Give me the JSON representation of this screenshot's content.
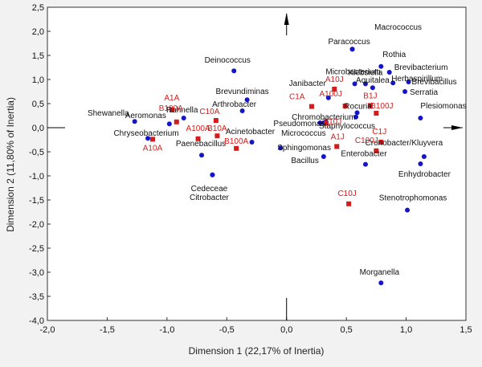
{
  "chart_data": {
    "type": "scatter",
    "title": "",
    "xlabel": "Dimension 1 (22,17% of Inertia)",
    "ylabel": "Dimension 2 (11,80% of Inertia)",
    "xlim": [
      -2.0,
      1.5
    ],
    "ylim": [
      -4.0,
      2.5
    ],
    "xticks": [
      -2.0,
      -1.5,
      -1.0,
      -0.5,
      0.0,
      0.5,
      1.0,
      1.5
    ],
    "yticks": [
      -4.0,
      -3.5,
      -3.0,
      -2.5,
      -2.0,
      -1.5,
      -1.0,
      -0.5,
      0.0,
      0.5,
      1.0,
      1.5,
      2.0,
      2.5
    ],
    "decimal_separator": ",",
    "grid": false,
    "colors": {
      "bacteria": "#1515c8",
      "samples": "#d41c1c",
      "text": "#111111",
      "background": "#f2f2f2"
    },
    "series": [
      {
        "name": "bacteria",
        "marker": "circle",
        "points": [
          {
            "label": "Macrococcus",
            "x": 0.55,
            "y": 1.63
          },
          {
            "label": "Paracoccus",
            "x": 0.55,
            "y": 1.63
          },
          {
            "label": "Rothia",
            "x": 0.79,
            "y": 1.27
          },
          {
            "label": "Brevibacterium",
            "x": 0.86,
            "y": 1.15
          },
          {
            "label": "Microbacterium",
            "x": 0.57,
            "y": 0.91
          },
          {
            "label": "Klebsiella",
            "x": 0.66,
            "y": 0.91
          },
          {
            "label": "Herbaspirillum",
            "x": 0.89,
            "y": 0.93
          },
          {
            "label": "Brevibacillus",
            "x": 1.02,
            "y": 0.95
          },
          {
            "label": "Aquitalea",
            "x": 0.72,
            "y": 0.83
          },
          {
            "label": "Serratia",
            "x": 0.99,
            "y": 0.75
          },
          {
            "label": "Deinococcus",
            "x": -0.44,
            "y": 1.18
          },
          {
            "label": "Brevundiminas",
            "x": -0.33,
            "y": 0.58
          },
          {
            "label": "Arthrobacter",
            "x": -0.37,
            "y": 0.35
          },
          {
            "label": "Janibacter",
            "x": 0.35,
            "y": 0.62
          },
          {
            "label": "Rocuria",
            "x": 0.59,
            "y": 0.31
          },
          {
            "label": "Chromobacterium",
            "x": 0.33,
            "y": 0.12
          },
          {
            "label": "Pseudomonas",
            "x": 0.28,
            "y": 0.1
          },
          {
            "label": "Staphylococcus",
            "x": 0.58,
            "y": 0.22
          },
          {
            "label": "Plesiomonas",
            "x": 1.12,
            "y": 0.2
          },
          {
            "label": "Micrococcus",
            "x": 0.31,
            "y": 0.1
          },
          {
            "label": "Shewanella",
            "x": -1.27,
            "y": 0.13
          },
          {
            "label": "Aeromonas",
            "x": -0.98,
            "y": 0.08
          },
          {
            "label": "Rahnella",
            "x": -0.86,
            "y": 0.2
          },
          {
            "label": "Chryseobacterium",
            "x": -1.16,
            "y": -0.22
          },
          {
            "label": "Acinetobacter",
            "x": -0.29,
            "y": -0.3
          },
          {
            "label": "Sphingomonas",
            "x": -0.05,
            "y": -0.42
          },
          {
            "label": "Paenebacillus",
            "x": -0.71,
            "y": -0.57
          },
          {
            "label": "Bacillus",
            "x": 0.31,
            "y": -0.6
          },
          {
            "label": "Enterobacter",
            "x": 0.66,
            "y": -0.76
          },
          {
            "label": "Cronobacter/Kluyvera",
            "x": 1.15,
            "y": -0.6
          },
          {
            "label": "Enhydrobacter",
            "x": 1.12,
            "y": -0.75
          },
          {
            "label": "Cedeceae",
            "x": -0.62,
            "y": -0.98
          },
          {
            "label": "Citrobacter",
            "x": -0.62,
            "y": -0.98
          },
          {
            "label": "Stenotrophomonas",
            "x": 1.01,
            "y": -1.71
          },
          {
            "label": "Morganella",
            "x": 0.79,
            "y": -3.22
          }
        ]
      },
      {
        "name": "samples",
        "marker": "square",
        "points": [
          {
            "label": "A1A",
            "x": -0.96,
            "y": 0.37
          },
          {
            "label": "B100A",
            "x": -0.92,
            "y": 0.12
          },
          {
            "label": "C10A",
            "x": -0.59,
            "y": 0.15
          },
          {
            "label": "A100A",
            "x": -0.74,
            "y": -0.23
          },
          {
            "label": "B10A",
            "x": -0.58,
            "y": -0.17
          },
          {
            "label": "A10A",
            "x": -1.12,
            "y": -0.24
          },
          {
            "label": "B100A",
            "x": -0.42,
            "y": -0.43
          },
          {
            "label": "A10J",
            "x": 0.4,
            "y": 0.8
          },
          {
            "label": "C1A",
            "x": 0.21,
            "y": 0.44
          },
          {
            "label": "A100J",
            "x": 0.49,
            "y": 0.45
          },
          {
            "label": "B1J",
            "x": 0.7,
            "y": 0.46
          },
          {
            "label": "B100J",
            "x": 0.75,
            "y": 0.3
          },
          {
            "label": "B10J",
            "x": 0.33,
            "y": 0.09
          },
          {
            "label": "A1J",
            "x": 0.42,
            "y": -0.39
          },
          {
            "label": "C1J",
            "x": 0.79,
            "y": -0.3
          },
          {
            "label": "C100J",
            "x": 0.75,
            "y": -0.48
          },
          {
            "label": "C10J",
            "x": 0.52,
            "y": -1.58
          }
        ]
      }
    ],
    "center_arrows": [
      "up",
      "right"
    ]
  }
}
